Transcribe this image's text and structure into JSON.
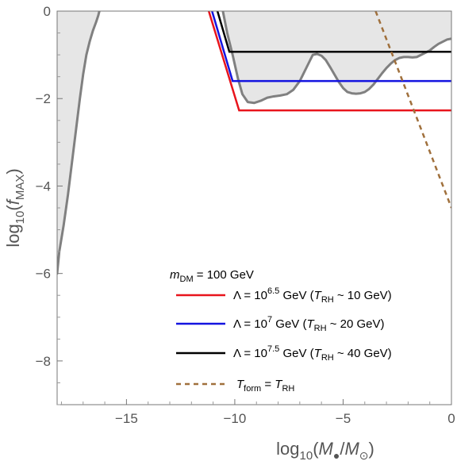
{
  "chart_data": {
    "type": "line",
    "xlabel": {
      "prefix": "log",
      "sub": "10",
      "open": "(",
      "num": "M",
      "num_sub": "●",
      "slash": "/",
      "den": "M",
      "den_sub": "⊙",
      "close": ")"
    },
    "ylabel": {
      "prefix": "log",
      "sub": "10",
      "open": "(",
      "var": "f",
      "var_sub": "MAX",
      "close": ")"
    },
    "xlim": [
      -18.2,
      0
    ],
    "ylim": [
      -9,
      0
    ],
    "x_ticks": [
      -15,
      -10,
      -5,
      0
    ],
    "x_tick_labels": [
      "−15",
      "−10",
      "−5",
      "0"
    ],
    "y_ticks": [
      0,
      -2,
      -4,
      -6,
      -8
    ],
    "y_tick_labels": [
      "0",
      "−2",
      "−4",
      "−6",
      "−8"
    ],
    "grid": false,
    "legend_placement": "bottom-right",
    "legend_header": {
      "var": "m",
      "var_sub": "DM",
      "rest": " = 100 GeV"
    },
    "colors": {
      "red": "#e8141c",
      "blue": "#1414e0",
      "black": "#000000",
      "brown": "#a0703c",
      "constraint_fill": "#e6e6e6",
      "constraint_line": "#808080"
    },
    "series": [
      {
        "color_key": "red",
        "style": "solid",
        "legend": {
          "pre": "Λ = 10",
          "sup": "6.5",
          "mid": " GeV (",
          "var": "T",
          "var_sub": "RH",
          "post": " ~ 10 GeV)"
        },
        "x": [
          -11.2,
          -9.8,
          0
        ],
        "y": [
          0,
          -2.27,
          -2.27
        ]
      },
      {
        "color_key": "blue",
        "style": "solid",
        "legend": {
          "pre": "Λ = 10",
          "sup": "7",
          "mid": " GeV (",
          "var": "T",
          "var_sub": "RH",
          "post": " ~ 20 GeV)"
        },
        "x": [
          -11.05,
          -10.1,
          0
        ],
        "y": [
          0,
          -1.6,
          -1.6
        ]
      },
      {
        "color_key": "black",
        "style": "solid",
        "legend": {
          "pre": "Λ = 10",
          "sup": "7.5",
          "mid": " GeV (",
          "var": "T",
          "var_sub": "RH",
          "post": " ~ 40 GeV)"
        },
        "x": [
          -10.8,
          -10.25,
          0
        ],
        "y": [
          0,
          -0.93,
          -0.93
        ]
      },
      {
        "color_key": "brown",
        "style": "dashed",
        "legend": {
          "pre": "",
          "sup": "",
          "mid": "",
          "var": "T",
          "var_sub": "form",
          "post": " = ",
          "var2": "T",
          "var2_sub": "RH"
        },
        "x": [
          -3.5,
          0
        ],
        "y": [
          0,
          -4.5
        ]
      }
    ],
    "constraints": [
      {
        "region": "left",
        "x": [
          -18.2,
          -18.1,
          -17.9,
          -17.7,
          -17.5,
          -17.3,
          -17.15,
          -17.0,
          -16.85,
          -16.7,
          -16.55,
          -16.4,
          -16.3,
          -16.25
        ],
        "y": [
          -6.0,
          -5.5,
          -4.9,
          -4.2,
          -3.4,
          -2.6,
          -2.0,
          -1.45,
          -1.0,
          -0.7,
          -0.45,
          -0.25,
          -0.1,
          0
        ]
      },
      {
        "region": "right",
        "x": [
          -10.55,
          -10.35,
          -10.1,
          -9.85,
          -9.65,
          -9.4,
          -9.1,
          -8.8,
          -8.5,
          -8.2,
          -7.9,
          -7.6,
          -7.3,
          -7.0,
          -6.7,
          -6.4,
          -6.2,
          -6.0,
          -5.8,
          -5.6,
          -5.4,
          -5.2,
          -5.0,
          -4.8,
          -4.6,
          -4.4,
          -4.2,
          -4.0,
          -3.8,
          -3.6,
          -3.4,
          -3.2,
          -3.0,
          -2.8,
          -2.6,
          -2.4,
          -2.2,
          -2.0,
          -1.8,
          -1.6,
          -1.4,
          -1.2,
          -1.0,
          -0.8,
          -0.6,
          -0.4,
          -0.2,
          0.0
        ],
        "y": [
          0,
          -0.5,
          -1.0,
          -1.55,
          -1.9,
          -2.08,
          -2.1,
          -2.05,
          -1.98,
          -1.95,
          -1.93,
          -1.9,
          -1.8,
          -1.6,
          -1.3,
          -1.0,
          -0.98,
          -1.02,
          -1.12,
          -1.28,
          -1.45,
          -1.62,
          -1.76,
          -1.85,
          -1.88,
          -1.89,
          -1.88,
          -1.85,
          -1.78,
          -1.68,
          -1.55,
          -1.42,
          -1.3,
          -1.2,
          -1.12,
          -1.07,
          -1.05,
          -1.05,
          -1.06,
          -1.05,
          -1.0,
          -0.95,
          -0.9,
          -0.82,
          -0.75,
          -0.7,
          -0.65,
          -0.63
        ]
      }
    ]
  }
}
